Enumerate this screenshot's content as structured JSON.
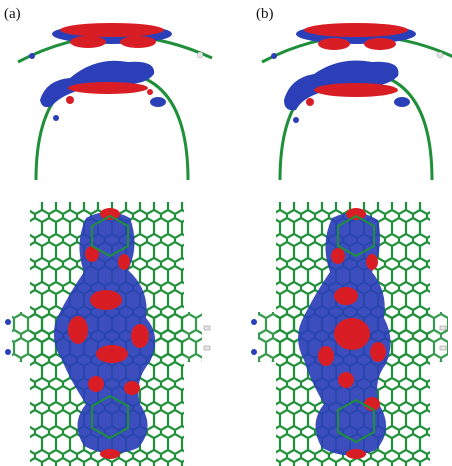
{
  "figure": {
    "panels": [
      {
        "id": "a",
        "label": "(a)"
      },
      {
        "id": "b",
        "label": "(b)"
      }
    ],
    "colors": {
      "background": "#ffffff",
      "carbon_bond": "#1f8f3a",
      "positive_lobe": "#d81e24",
      "negative_lobe": "#2b3fb8",
      "hydrogen": "#e6e6e6"
    }
  }
}
